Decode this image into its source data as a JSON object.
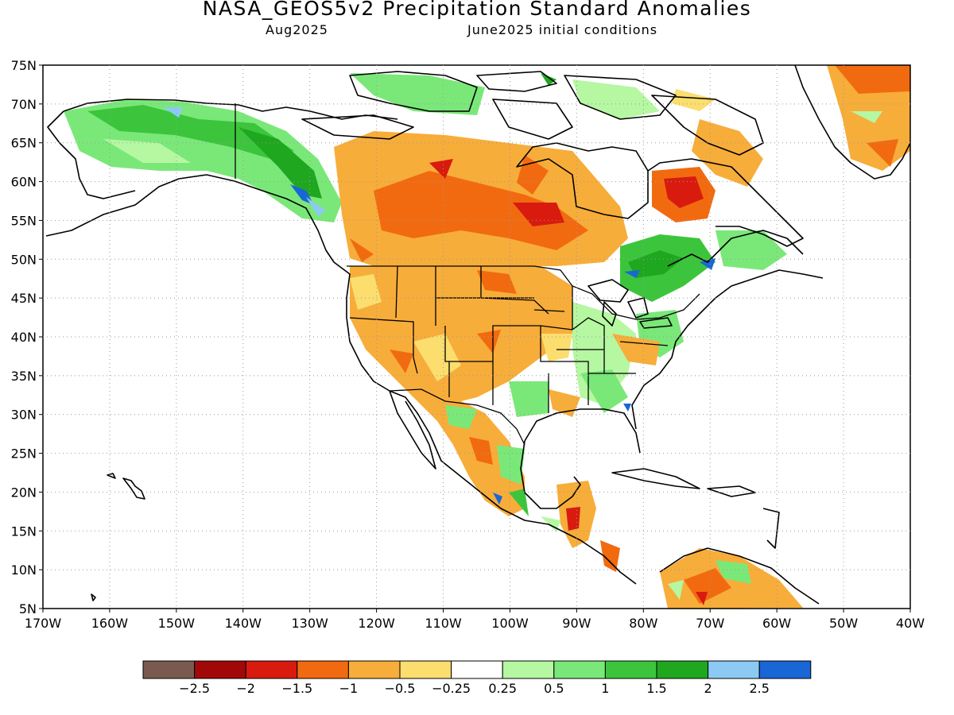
{
  "header": {
    "title": "NASA_GEOS5v2 Precipitation Standard Anomalies",
    "subtitle_left": "Aug2025",
    "subtitle_right": "June2025 initial conditions"
  },
  "map": {
    "lat_labels": [
      "75N",
      "70N",
      "65N",
      "60N",
      "55N",
      "50N",
      "45N",
      "40N",
      "35N",
      "30N",
      "25N",
      "20N",
      "15N",
      "10N",
      "5N"
    ],
    "lon_labels": [
      "170W",
      "160W",
      "150W",
      "140W",
      "130W",
      "120W",
      "110W",
      "100W",
      "90W",
      "80W",
      "70W",
      "60W",
      "50W",
      "40W"
    ]
  },
  "colorbar": {
    "colors": [
      "#7a5a4f",
      "#a30808",
      "#d81b0e",
      "#f26a10",
      "#f7ad3a",
      "#fbde6e",
      "#ffffff",
      "#b6f7a2",
      "#7ae879",
      "#3cc53c",
      "#1fa71f",
      "#8ccaf4",
      "#1966d6"
    ],
    "labels": [
      "−2.5",
      "−2",
      "−1.5",
      "−1",
      "−0.5",
      "−0.25",
      "0.25",
      "0.5",
      "1",
      "1.5",
      "2",
      "2.5"
    ]
  }
}
